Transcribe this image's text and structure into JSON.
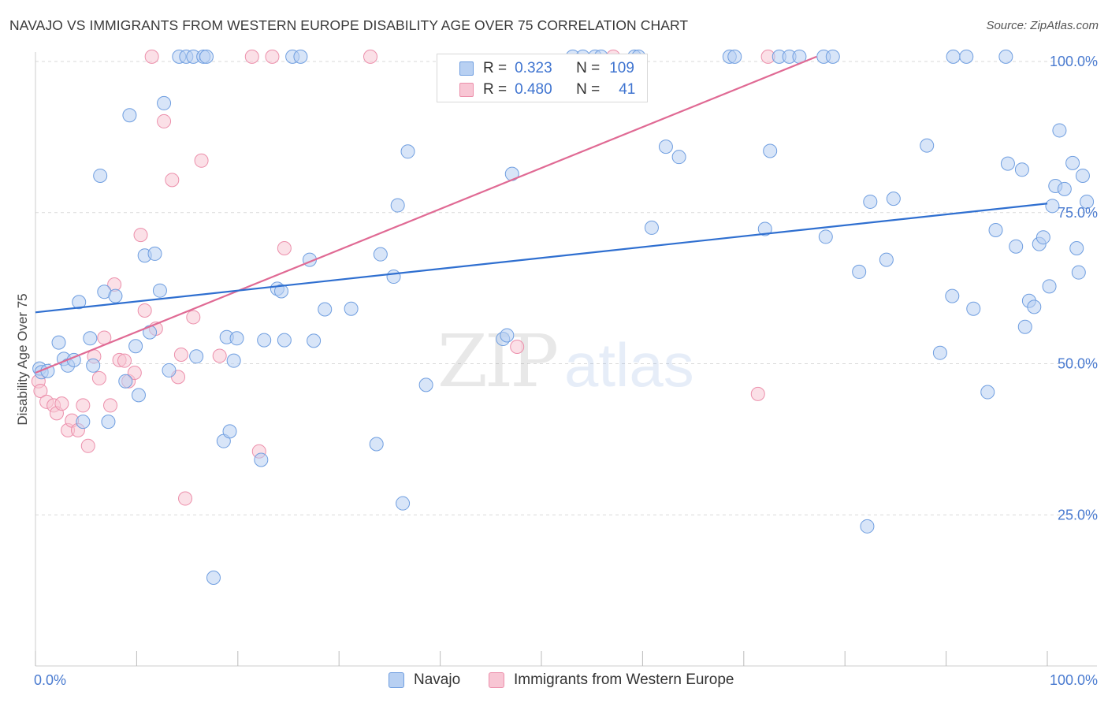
{
  "header": {
    "title": "NAVAJO VS IMMIGRANTS FROM WESTERN EUROPE DISABILITY AGE OVER 75 CORRELATION CHART",
    "source": "Source: ZipAtlas.com"
  },
  "watermark": {
    "zip": "ZIP",
    "atlas": "atlas"
  },
  "colors": {
    "navajo_fill": "#b8d0f2",
    "navajo_stroke": "#6f9ee0",
    "navajo_line": "#2f6fd0",
    "immig_fill": "#f8c6d4",
    "immig_stroke": "#ec8fab",
    "immig_line": "#e06a94",
    "grid": "#d9d9d9",
    "tick_text": "#4a7bd0"
  },
  "legend": {
    "rows": [
      {
        "r_label": "R =",
        "r_value": "0.323",
        "n_label": "N =",
        "n_value": "109"
      },
      {
        "r_label": "R =",
        "r_value": "0.480",
        "n_label": "N =",
        "n_value": "41"
      }
    ]
  },
  "bottom_legend": {
    "series1": "Navajo",
    "series2": "Immigrants from Western Europe"
  },
  "chart_data": {
    "type": "scatter",
    "title": "NAVAJO VS IMMIGRANTS FROM WESTERN EUROPE DISABILITY AGE OVER 75 CORRELATION CHART",
    "xlabel": "",
    "ylabel": "Disability Age Over 75",
    "xlim": [
      0,
      100
    ],
    "ylim": [
      0,
      103
    ],
    "x_ticks": [
      "0.0%",
      "100.0%"
    ],
    "y_ticks": [
      {
        "value": 25,
        "label": "25.0%"
      },
      {
        "value": 50,
        "label": "50.0%"
      },
      {
        "value": 75,
        "label": "75.0%"
      },
      {
        "value": 100,
        "label": "100.0%"
      }
    ],
    "grid": true,
    "legend_position": "top-center",
    "series": [
      {
        "name": "Navajo",
        "r": 0.323,
        "n": 109,
        "trend": {
          "x": [
            0,
            100
          ],
          "y": [
            58.5,
            76.5
          ]
        },
        "points": [
          [
            0.4,
            49.2
          ],
          [
            0.6,
            48.6
          ],
          [
            1.2,
            48.8
          ],
          [
            2.3,
            53.5
          ],
          [
            2.8,
            50.8
          ],
          [
            3.2,
            49.7
          ],
          [
            3.8,
            50.6
          ],
          [
            4.3,
            60.2
          ],
          [
            4.7,
            40.4
          ],
          [
            5.4,
            54.2
          ],
          [
            5.7,
            49.7
          ],
          [
            6.4,
            81.1
          ],
          [
            6.8,
            61.9
          ],
          [
            7.2,
            40.4
          ],
          [
            7.9,
            61.2
          ],
          [
            8.9,
            47.1
          ],
          [
            9.3,
            91.1
          ],
          [
            9.9,
            52.9
          ],
          [
            10.2,
            44.8
          ],
          [
            10.8,
            67.9
          ],
          [
            11.3,
            55.2
          ],
          [
            11.8,
            68.2
          ],
          [
            12.3,
            62.1
          ],
          [
            12.7,
            93.1
          ],
          [
            13.2,
            48.9
          ],
          [
            14.2,
            100.8
          ],
          [
            14.9,
            100.8
          ],
          [
            15.6,
            100.8
          ],
          [
            15.9,
            51.2
          ],
          [
            16.6,
            100.8
          ],
          [
            16.9,
            100.8
          ],
          [
            17.6,
            14.6
          ],
          [
            18.6,
            37.2
          ],
          [
            18.9,
            54.4
          ],
          [
            19.2,
            38.8
          ],
          [
            19.6,
            50.5
          ],
          [
            19.9,
            54.2
          ],
          [
            22.3,
            34.1
          ],
          [
            22.6,
            53.9
          ],
          [
            23.9,
            62.4
          ],
          [
            24.3,
            62.0
          ],
          [
            24.6,
            53.9
          ],
          [
            25.4,
            100.8
          ],
          [
            26.2,
            100.8
          ],
          [
            27.1,
            67.2
          ],
          [
            27.5,
            53.8
          ],
          [
            28.6,
            59.0
          ],
          [
            31.2,
            59.1
          ],
          [
            33.7,
            36.7
          ],
          [
            34.1,
            68.1
          ],
          [
            35.4,
            64.4
          ],
          [
            35.8,
            76.2
          ],
          [
            36.3,
            26.9
          ],
          [
            36.8,
            85.1
          ],
          [
            38.6,
            46.5
          ],
          [
            46.2,
            54.1
          ],
          [
            46.6,
            54.7
          ],
          [
            47.1,
            81.4
          ],
          [
            53.1,
            100.8
          ],
          [
            54.1,
            100.8
          ],
          [
            55.3,
            100.8
          ],
          [
            55.9,
            100.8
          ],
          [
            59.2,
            100.8
          ],
          [
            59.6,
            100.8
          ],
          [
            60.9,
            72.5
          ],
          [
            62.3,
            85.9
          ],
          [
            63.6,
            84.2
          ],
          [
            68.6,
            100.8
          ],
          [
            69.1,
            100.8
          ],
          [
            72.1,
            72.3
          ],
          [
            72.6,
            85.2
          ],
          [
            73.5,
            100.8
          ],
          [
            74.5,
            100.8
          ],
          [
            75.5,
            100.8
          ],
          [
            77.9,
            100.8
          ],
          [
            78.1,
            71.0
          ],
          [
            78.8,
            100.8
          ],
          [
            81.4,
            65.2
          ],
          [
            82.2,
            23.1
          ],
          [
            82.5,
            76.8
          ],
          [
            84.1,
            67.2
          ],
          [
            84.8,
            77.3
          ],
          [
            88.1,
            86.1
          ],
          [
            89.4,
            51.8
          ],
          [
            90.6,
            61.2
          ],
          [
            90.7,
            100.8
          ],
          [
            92.0,
            100.8
          ],
          [
            92.7,
            59.1
          ],
          [
            94.1,
            45.3
          ],
          [
            94.9,
            72.1
          ],
          [
            95.9,
            100.8
          ],
          [
            96.1,
            83.1
          ],
          [
            96.9,
            69.4
          ],
          [
            97.5,
            82.1
          ],
          [
            97.8,
            56.1
          ],
          [
            98.2,
            60.4
          ],
          [
            98.7,
            59.4
          ],
          [
            99.2,
            69.8
          ],
          [
            99.6,
            70.9
          ],
          [
            100.2,
            62.8
          ],
          [
            100.5,
            76.1
          ],
          [
            100.8,
            79.4
          ],
          [
            101.2,
            88.6
          ],
          [
            101.7,
            78.9
          ],
          [
            102.5,
            83.2
          ],
          [
            102.9,
            69.1
          ],
          [
            103.1,
            65.1
          ],
          [
            103.5,
            81.1
          ],
          [
            103.9,
            76.8
          ]
        ]
      },
      {
        "name": "Immigrants from Western Europe",
        "r": 0.48,
        "n": 41,
        "trend": {
          "x": [
            0,
            77.2
          ],
          "y": [
            48.5,
            100.8
          ]
        },
        "points": [
          [
            0.3,
            47.1
          ],
          [
            0.5,
            45.5
          ],
          [
            1.1,
            43.7
          ],
          [
            1.8,
            43.1
          ],
          [
            2.1,
            41.8
          ],
          [
            2.6,
            43.4
          ],
          [
            3.2,
            39.0
          ],
          [
            3.6,
            40.6
          ],
          [
            4.2,
            39.0
          ],
          [
            4.7,
            43.1
          ],
          [
            5.2,
            36.4
          ],
          [
            5.8,
            51.2
          ],
          [
            6.3,
            47.6
          ],
          [
            6.8,
            54.3
          ],
          [
            7.4,
            43.1
          ],
          [
            7.8,
            63.1
          ],
          [
            8.3,
            50.6
          ],
          [
            8.8,
            50.5
          ],
          [
            9.2,
            47.1
          ],
          [
            9.8,
            48.5
          ],
          [
            10.4,
            71.3
          ],
          [
            10.8,
            58.8
          ],
          [
            11.5,
            100.8
          ],
          [
            11.9,
            55.8
          ],
          [
            12.7,
            90.1
          ],
          [
            13.5,
            80.4
          ],
          [
            14.1,
            47.8
          ],
          [
            14.4,
            51.5
          ],
          [
            14.8,
            27.7
          ],
          [
            15.6,
            57.7
          ],
          [
            16.4,
            83.6
          ],
          [
            18.2,
            51.3
          ],
          [
            21.4,
            100.8
          ],
          [
            22.1,
            35.5
          ],
          [
            23.4,
            100.8
          ],
          [
            24.6,
            69.1
          ],
          [
            33.1,
            100.8
          ],
          [
            47.6,
            52.8
          ],
          [
            57.1,
            100.8
          ],
          [
            71.4,
            45.0
          ],
          [
            72.4,
            100.8
          ]
        ]
      }
    ]
  }
}
